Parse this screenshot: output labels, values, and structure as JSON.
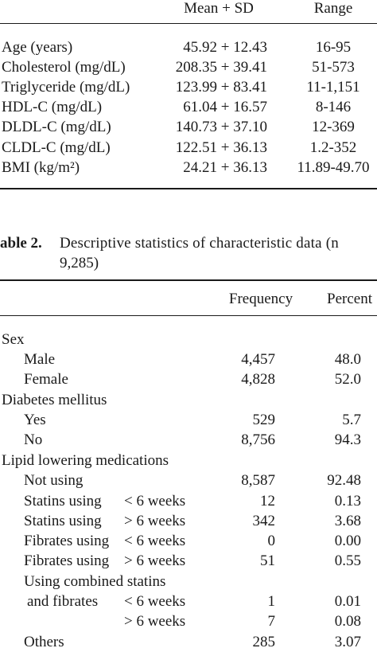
{
  "table1": {
    "headers": {
      "mean_sd": "Mean + SD",
      "range": "Range"
    },
    "rows": [
      {
        "label": "Age (years)",
        "mean": "45.92 + 12.43",
        "range": "16-95"
      },
      {
        "label": "Cholesterol (mg/dL)",
        "mean": "208.35 + 39.41",
        "range": "51-573"
      },
      {
        "label": "Triglyceride (mg/dL)",
        "mean": "123.99 + 83.41",
        "range": "11-1,151"
      },
      {
        "label": "HDL-C (mg/dL)",
        "mean": "61.04 + 16.57",
        "range": "8-146"
      },
      {
        "label": "DLDL-C (mg/dL)",
        "mean": "140.73 + 37.10",
        "range": "12-369"
      },
      {
        "label": "CLDL-C (mg/dL)",
        "mean": "122.51 + 36.13",
        "range": "1.2-352"
      },
      {
        "label": "BMI (kg/m²)",
        "mean": "24.21 + 36.13",
        "range": "11.89-49.70"
      }
    ]
  },
  "table2": {
    "caption_label": "able 2.",
    "caption_line1": "Descriptive statistics of characteristic data (n",
    "caption_line2": "9,285)",
    "headers": {
      "frequency": "Frequency",
      "percent": "Percent"
    },
    "sex": "Sex",
    "male": {
      "label": "Male",
      "freq": "4,457",
      "pct": "48.0"
    },
    "female": {
      "label": "Female",
      "freq": "4,828",
      "pct": "52.0"
    },
    "diabetes": "Diabetes mellitus",
    "yes": {
      "label": "Yes",
      "freq": "529",
      "pct": "5.7"
    },
    "no": {
      "label": "No",
      "freq": "8,756",
      "pct": "94.3"
    },
    "lipid": "Lipid lowering medications",
    "not_using": {
      "label": "Not using",
      "freq": "8,587",
      "pct": "92.48"
    },
    "statins_lt": {
      "label": "Statins using",
      "period": "< 6 weeks",
      "freq": "12",
      "pct": "0.13"
    },
    "statins_ge": {
      "label": "Statins using",
      "period": "> 6 weeks",
      "freq": "342",
      "pct": "3.68"
    },
    "fibrates_lt": {
      "label": "Fibrates using",
      "period": "< 6 weeks",
      "freq": "0",
      "pct": "0.00"
    },
    "fibrates_ge": {
      "label": "Fibrates using",
      "period": "> 6 weeks",
      "freq": "51",
      "pct": "0.55"
    },
    "combined_line1": "Using combined statins",
    "combined_lt": {
      "label": "and fibrates",
      "period": "< 6 weeks",
      "freq": "1",
      "pct": "0.01"
    },
    "combined_ge": {
      "period": "> 6 weeks",
      "freq": "7",
      "pct": "0.08"
    },
    "others": {
      "label": "Others",
      "freq": "285",
      "pct": "3.07"
    }
  }
}
